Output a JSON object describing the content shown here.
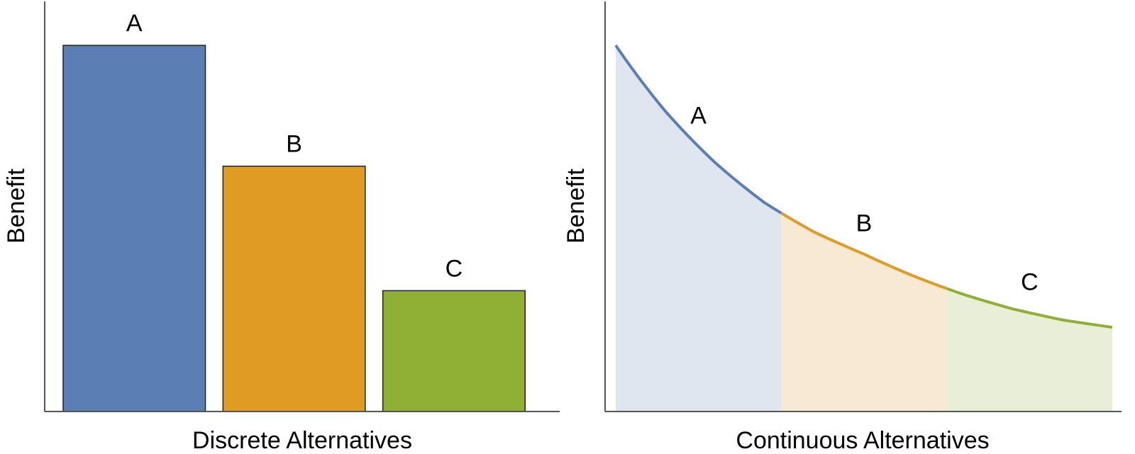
{
  "chart_data": [
    {
      "type": "bar",
      "categories": [
        "A",
        "B",
        "C"
      ],
      "values": [
        100,
        67,
        33
      ],
      "colors": [
        "#5b7fb5",
        "#e09b24",
        "#8fb035"
      ],
      "xlabel": "Discrete Alternatives",
      "ylabel": "Benefit",
      "ylim": [
        0,
        112
      ],
      "grid": false,
      "ticks": false
    },
    {
      "type": "area",
      "x": [
        0,
        0.1,
        0.2,
        0.3,
        0.4,
        0.5,
        0.6,
        0.7,
        0.8,
        0.9,
        1.0
      ],
      "y": [
        100,
        82,
        68,
        57,
        49,
        43,
        37,
        32,
        28,
        25,
        23
      ],
      "segments": [
        {
          "label": "A",
          "x_range": [
            0,
            0.333
          ],
          "color": "#5b7fb5",
          "fill_color": "#dfe6f0"
        },
        {
          "label": "B",
          "x_range": [
            0.333,
            0.667
          ],
          "color": "#e09b24",
          "fill_color": "#f8e9d5"
        },
        {
          "label": "C",
          "x_range": [
            0.667,
            1.0
          ],
          "color": "#8fb035",
          "fill_color": "#e8eed8"
        }
      ],
      "xlabel": "Continuous Alternatives",
      "ylabel": "Benefit",
      "xlim": [
        0,
        1
      ],
      "ylim": [
        0,
        112
      ],
      "grid": false,
      "ticks": false
    }
  ]
}
